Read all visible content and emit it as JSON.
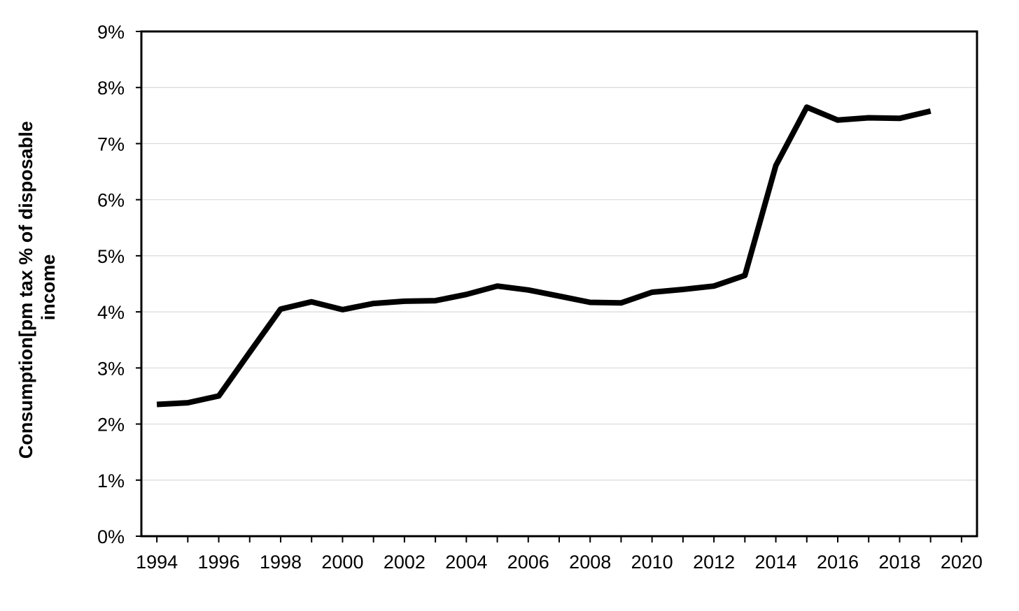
{
  "chart_data": {
    "type": "line",
    "title": "",
    "xlabel": "",
    "ylabel_lines": [
      "Consumption[pm tax % of disposable",
      "income"
    ],
    "xlim": [
      1993.5,
      2020.5
    ],
    "ylim": [
      0,
      9
    ],
    "x_ticks": [
      1994,
      1996,
      1998,
      2000,
      2002,
      2004,
      2006,
      2008,
      2010,
      2012,
      2014,
      2016,
      2018,
      2020
    ],
    "x_tick_labels": [
      "1994",
      "1996",
      "1998",
      "2000",
      "2002",
      "2004",
      "2006",
      "2008",
      "2010",
      "2012",
      "2014",
      "2016",
      "2018",
      "2020"
    ],
    "y_ticks": [
      0,
      1,
      2,
      3,
      4,
      5,
      6,
      7,
      8,
      9
    ],
    "y_tick_labels": [
      "0%",
      "1%",
      "2%",
      "3%",
      "4%",
      "5%",
      "6%",
      "7%",
      "8%",
      "9%"
    ],
    "grid": "horizontal",
    "legend": "none",
    "colors": {
      "line": "#000000",
      "grid": "#d9d9d9",
      "frame": "#000000"
    },
    "series": [
      {
        "x": [
          1994,
          1995,
          1996,
          1997,
          1998,
          1999,
          2000,
          2001,
          2002,
          2003,
          2004,
          2005,
          2006,
          2007,
          2008,
          2009,
          2010,
          2011,
          2012,
          2013,
          2014,
          2015,
          2016,
          2017,
          2018,
          2019
        ],
        "values": [
          2.35,
          2.38,
          2.5,
          3.28,
          4.05,
          4.18,
          4.04,
          4.15,
          4.19,
          4.2,
          4.31,
          4.46,
          4.39,
          4.28,
          4.17,
          4.16,
          4.35,
          4.4,
          4.46,
          4.65,
          6.61,
          7.65,
          7.42,
          7.46,
          7.45,
          7.58
        ]
      }
    ]
  }
}
